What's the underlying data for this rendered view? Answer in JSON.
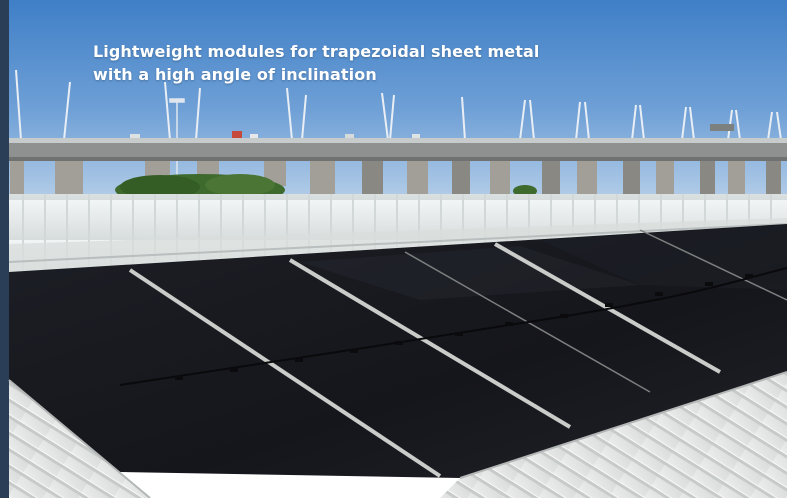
{
  "caption": {
    "line1": "Lightweight modules for trapezoidal sheet metal",
    "line2": "with a high angle of inclination"
  },
  "colors": {
    "sky_top": "#3f7fc7",
    "sky_bottom": "#a9c7e6",
    "bridge_deck": "#8c8f8d",
    "pillar": "#a09e97",
    "panel": "#17181d",
    "panel_frame": "#c9ccc9",
    "roof": "#e8ecec",
    "caption_text": "#ffffff"
  }
}
